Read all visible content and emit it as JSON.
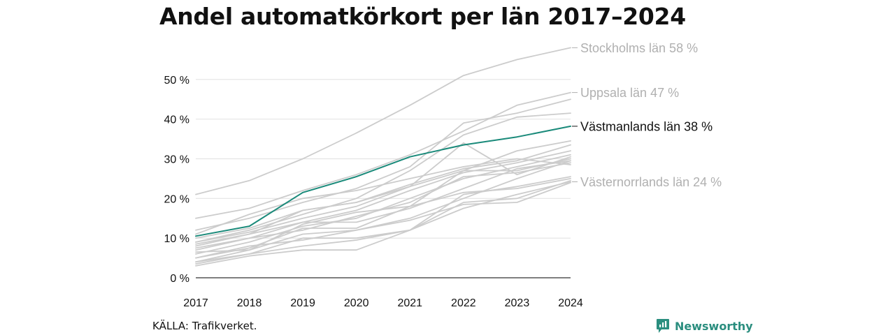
{
  "title": "Andel automatkörkort per län 2017–2024",
  "source": "KÄLLA: Trafikverket.",
  "brand": {
    "name": "Newsworthy",
    "icon": "newsworthy-logo-icon",
    "color": "#2b8e7f"
  },
  "colors": {
    "highlight": "#1a8a7a",
    "context": "#cccccc",
    "context_label": "#b0b0b0",
    "highlight_label": "#111111",
    "grid": "#e4e4e4",
    "axis": "#333333"
  },
  "chart_data": {
    "type": "line",
    "title": "Andel automatkörkort per län 2017–2024",
    "xlabel": "",
    "ylabel": "",
    "x": [
      "2017",
      "2018",
      "2019",
      "2020",
      "2021",
      "2022",
      "2023",
      "2024"
    ],
    "ylim": [
      0,
      60
    ],
    "yticks": [
      0,
      10,
      20,
      30,
      40,
      50
    ],
    "ytick_labels": [
      "0 %",
      "10 %",
      "20 %",
      "30 %",
      "40 %",
      "50 %"
    ],
    "grid": true,
    "highlight": {
      "name": "Västmanlands län",
      "values": [
        10.5,
        13,
        21.5,
        25.5,
        30.5,
        33.5,
        35.5,
        38.2
      ]
    },
    "series": [
      {
        "name": "Stockholms län",
        "values": [
          21,
          24.5,
          30,
          36.5,
          43.5,
          51,
          55,
          58
        ]
      },
      {
        "name": "Uppsala län",
        "values": [
          15,
          17.5,
          22,
          26,
          31,
          37,
          43.5,
          46.7
        ]
      },
      {
        "name": "Västernorrlands län",
        "values": [
          3.5,
          6,
          8,
          9.5,
          12,
          17.5,
          21,
          24.2
        ]
      },
      {
        "name": "",
        "values": [
          12,
          15,
          19,
          22.5,
          28,
          39,
          41.5,
          45
        ]
      },
      {
        "name": "",
        "values": [
          9,
          12,
          16,
          20,
          27,
          36,
          40.5,
          41.5
        ]
      },
      {
        "name": "",
        "values": [
          8,
          11,
          17,
          19,
          23,
          27,
          32,
          34.5
        ]
      },
      {
        "name": "",
        "values": [
          10,
          12.5,
          17,
          19,
          23.5,
          27.5,
          29.5,
          33.5
        ]
      },
      {
        "name": "",
        "values": [
          7,
          10,
          14,
          17,
          22,
          26.5,
          29,
          32
        ]
      },
      {
        "name": "",
        "values": [
          6,
          9,
          13,
          15,
          20,
          25,
          28,
          31
        ]
      },
      {
        "name": "",
        "values": [
          9,
          11.5,
          15,
          18,
          23,
          34,
          26,
          30.5
        ]
      },
      {
        "name": "",
        "values": [
          5,
          7.5,
          12.5,
          12.5,
          18,
          27,
          27,
          30
        ]
      },
      {
        "name": "",
        "values": [
          8.5,
          11,
          14,
          14,
          17.5,
          22.5,
          27.5,
          29.5
        ]
      },
      {
        "name": "",
        "values": [
          4,
          7,
          11,
          12,
          15,
          20,
          25,
          29.5
        ]
      },
      {
        "name": "",
        "values": [
          4,
          6,
          10,
          10,
          12,
          21,
          23,
          25.5
        ]
      },
      {
        "name": "",
        "values": [
          3,
          5.5,
          7,
          7,
          12,
          19,
          20,
          24.5
        ]
      },
      {
        "name": "",
        "values": [
          6.5,
          7,
          13.5,
          16.5,
          18,
          21.5,
          22.5,
          25
        ]
      },
      {
        "name": "",
        "values": [
          11,
          16,
          20,
          22,
          25,
          28,
          30,
          28.5
        ]
      },
      {
        "name": "",
        "values": [
          7.5,
          10,
          12,
          15.5,
          19,
          25.5,
          26.5,
          29
        ]
      },
      {
        "name": "",
        "values": [
          5,
          8,
          9.5,
          12,
          14.5,
          18.5,
          19,
          24
        ]
      }
    ],
    "annotations": [
      {
        "series": "Stockholms län",
        "text": "Stockholms län 58 %",
        "emphasis": false
      },
      {
        "series": "Uppsala län",
        "text": "Uppsala län 47 %",
        "emphasis": false
      },
      {
        "series": "Västmanlands län",
        "text": "Västmanlands län 38 %",
        "emphasis": true
      },
      {
        "series": "Västernorrlands län",
        "text": "Västernorrlands län 24 %",
        "emphasis": false
      }
    ]
  }
}
